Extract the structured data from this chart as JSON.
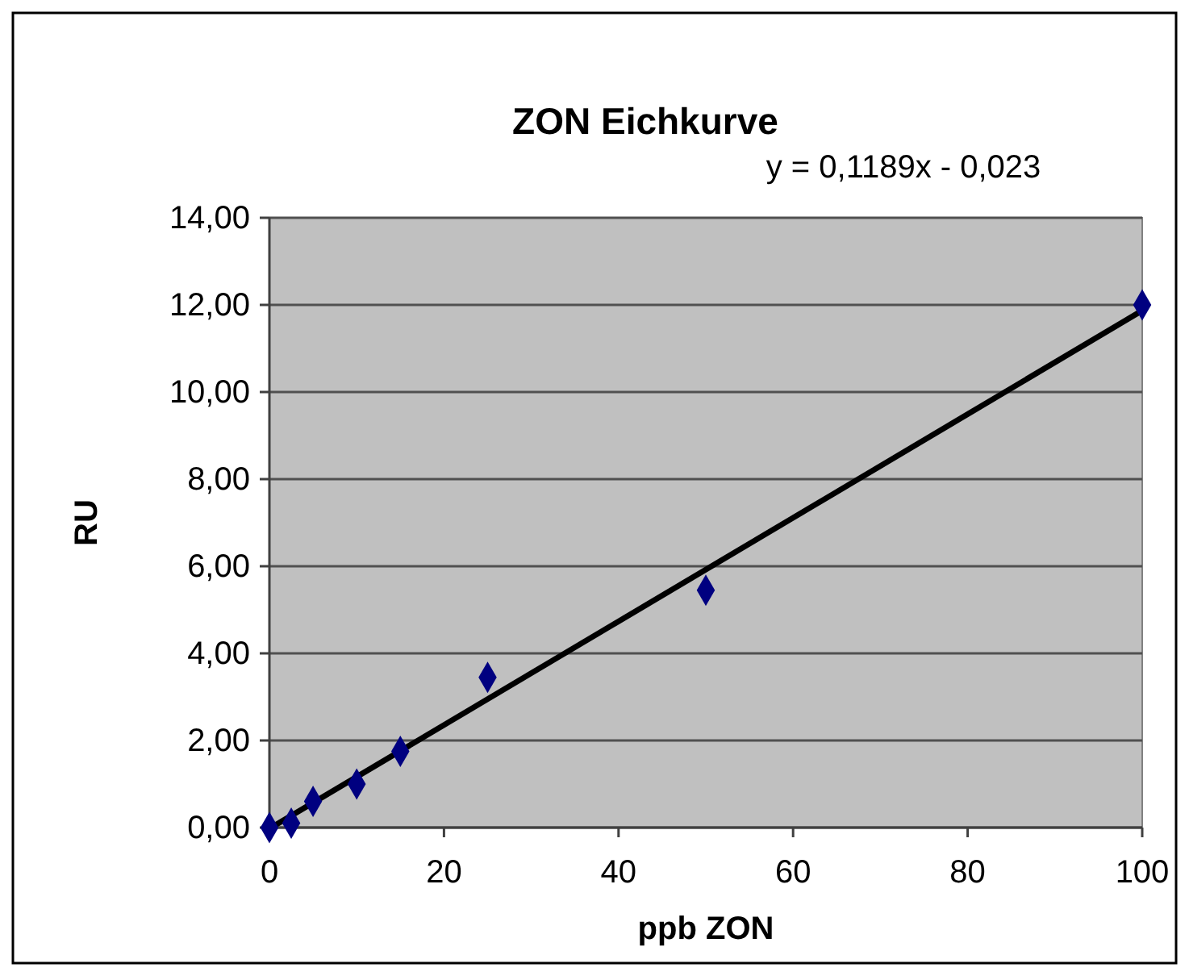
{
  "chart_data": {
    "type": "scatter",
    "title": "ZON Eichkurve",
    "xlabel": "ppb ZON",
    "ylabel": "RU",
    "annotations": [
      "y = 0,1189x - 0,023"
    ],
    "xlim": [
      0,
      100
    ],
    "xticks": [
      0,
      20,
      40,
      60,
      80,
      100
    ],
    "ylim": [
      0,
      14
    ],
    "yticks": [
      {
        "value": 0,
        "label": "0,00"
      },
      {
        "value": 2,
        "label": "2,00"
      },
      {
        "value": 4,
        "label": "4,00"
      },
      {
        "value": 6,
        "label": "6,00"
      },
      {
        "value": 8,
        "label": "8,00"
      },
      {
        "value": 10,
        "label": "10,00"
      },
      {
        "value": 12,
        "label": "12,00"
      },
      {
        "value": 14,
        "label": "14,00"
      }
    ],
    "grid": "y",
    "series": [
      {
        "color": "#000080",
        "marker": "diamond",
        "x": [
          0,
          2.5,
          5,
          10,
          15,
          25,
          50,
          100
        ],
        "values": [
          0,
          0.1,
          0.6,
          1.0,
          1.75,
          3.45,
          5.45,
          12.0
        ]
      },
      {
        "type": "line",
        "color": "#000000",
        "marker": "none",
        "line_style": "solid",
        "x": [
          0.2,
          100
        ],
        "values": [
          0,
          11.87
        ]
      }
    ]
  }
}
